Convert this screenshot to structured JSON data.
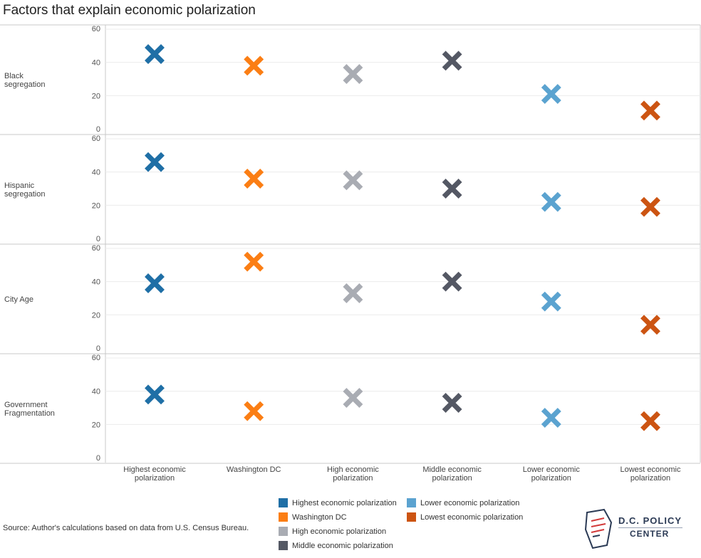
{
  "title": "Factors that explain economic polarization",
  "source": "Source: Author's calculations based on data from U.S. Census Bureau.",
  "logo": {
    "line1": "D.C. POLICY",
    "line2": "CENTER"
  },
  "legend": [
    {
      "label": "Highest economic polarization",
      "color": "#1f6fa6"
    },
    {
      "label": "Lower economic polarization",
      "color": "#5ba3d0"
    },
    {
      "label": "Washington DC",
      "color": "#fb7e14"
    },
    {
      "label": "Lowest economic polarization",
      "color": "#cc5412"
    },
    {
      "label": "High economic polarization",
      "color": "#a9acb3"
    },
    {
      "label": "Middle economic polarization",
      "color": "#545864"
    }
  ],
  "chart_data": {
    "type": "scatter",
    "marker": "x",
    "categories": [
      "Highest economic polarization",
      "Washington DC",
      "High economic polarization",
      "Middle economic polarization",
      "Lower economic polarization",
      "Lowest economic polarization"
    ],
    "category_labels": [
      [
        "Highest economic",
        "polarization"
      ],
      [
        "Washington DC"
      ],
      [
        "High economic",
        "polarization"
      ],
      [
        "Middle economic",
        "polarization"
      ],
      [
        "Lower economic",
        "polarization"
      ],
      [
        "Lowest economic",
        "polarization"
      ]
    ],
    "colors": [
      "#1f6fa6",
      "#fb7e14",
      "#a9acb3",
      "#545864",
      "#5ba3d0",
      "#cc5412"
    ],
    "ylim": [
      0,
      60
    ],
    "yticks": [
      0,
      20,
      40,
      60
    ],
    "grid": true,
    "panels": [
      {
        "label": [
          "Black",
          "segregation"
        ],
        "values": [
          45,
          38,
          33,
          41,
          21,
          11
        ]
      },
      {
        "label": [
          "Hispanic",
          "segregation"
        ],
        "values": [
          46,
          36,
          35,
          30,
          22,
          19
        ]
      },
      {
        "label": [
          "City Age"
        ],
        "values": [
          39,
          52,
          33,
          40,
          28,
          14
        ]
      },
      {
        "label": [
          "Government",
          "Fragmentation"
        ],
        "values": [
          38,
          28,
          36,
          33,
          24,
          22
        ]
      }
    ]
  }
}
